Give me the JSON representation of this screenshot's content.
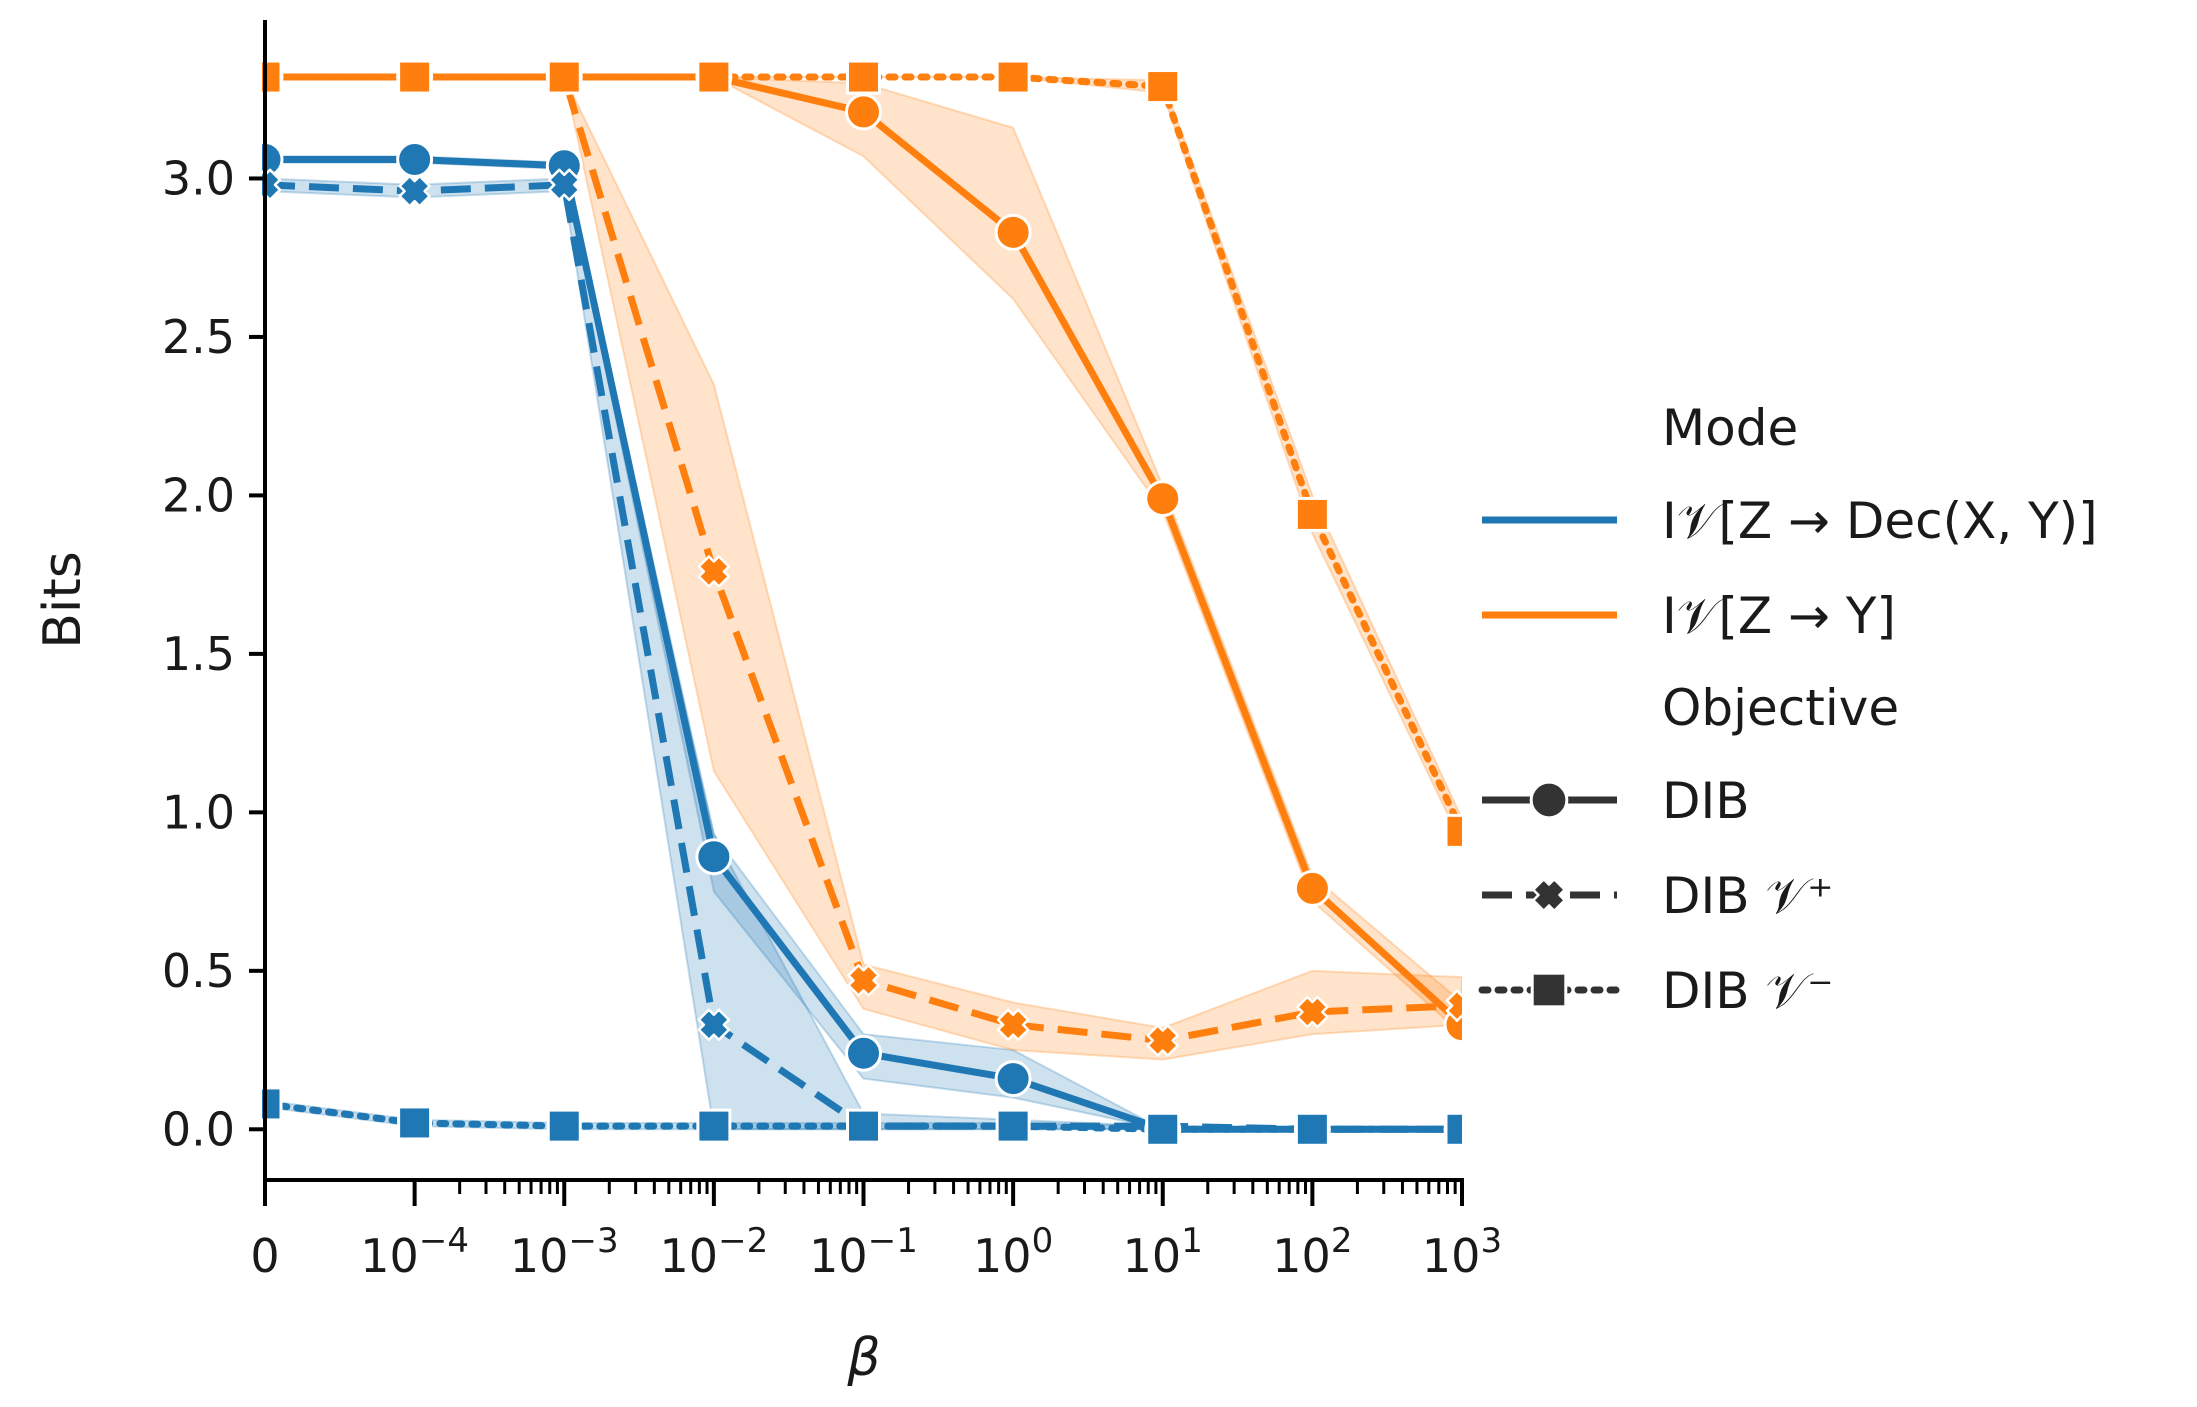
{
  "chart_data": {
    "type": "line",
    "xlabel": "β",
    "ylabel": "Bits",
    "x": [
      "0",
      "1e-4",
      "1e-3",
      "1e-2",
      "1e-1",
      "1e0",
      "1e1",
      "1e2",
      "1e3"
    ],
    "x_tick_labels": [
      {
        "base": "0",
        "exp": ""
      },
      {
        "base": "10",
        "exp": "−4"
      },
      {
        "base": "10",
        "exp": "−3"
      },
      {
        "base": "10",
        "exp": "−2"
      },
      {
        "base": "10",
        "exp": "−1"
      },
      {
        "base": "10",
        "exp": "0"
      },
      {
        "base": "10",
        "exp": "1"
      },
      {
        "base": "10",
        "exp": "2"
      },
      {
        "base": "10",
        "exp": "3"
      }
    ],
    "y_ticks": [
      "0.0",
      "0.5",
      "1.0",
      "1.5",
      "2.0",
      "2.5",
      "3.0"
    ],
    "ylim": [
      -0.16,
      3.5
    ],
    "x_scale": "symlog",
    "grid": false,
    "legend_position": "right",
    "legend": {
      "mode_title": "Mode",
      "mode_entries": [
        {
          "label": "I𝒱[Z → Dec(X, Y)]",
          "color": "#1f77b4"
        },
        {
          "label": "I𝒱[Z → Y]",
          "color": "#ff7f0e"
        }
      ],
      "objective_title": "Objective",
      "objective_entries": [
        {
          "label": "DIB",
          "style": "solid",
          "marker": "circle"
        },
        {
          "label": "DIB 𝒱⁺",
          "style": "dashed",
          "marker": "x"
        },
        {
          "label": "DIB 𝒱⁻",
          "style": "dotted",
          "marker": "square"
        }
      ]
    },
    "series": [
      {
        "mode": "I𝒱[Z → Dec(X, Y)]",
        "objective": "DIB",
        "color": "#1f77b4",
        "style": "solid",
        "marker": "circle",
        "values": [
          3.06,
          3.06,
          3.04,
          0.86,
          0.24,
          0.16,
          0.0,
          0.0,
          0.0
        ],
        "ci_low": [
          3.05,
          3.05,
          3.03,
          0.75,
          0.16,
          0.1,
          0.0,
          0.0,
          0.0
        ],
        "ci_high": [
          3.07,
          3.07,
          3.05,
          0.93,
          0.3,
          0.25,
          0.0,
          0.0,
          0.0
        ]
      },
      {
        "mode": "I𝒱[Z → Dec(X, Y)]",
        "objective": "DIB 𝒱⁺",
        "color": "#1f77b4",
        "style": "dashed",
        "marker": "x",
        "values": [
          2.98,
          2.96,
          2.98,
          0.33,
          0.01,
          0.01,
          0.01,
          0.0,
          0.0
        ],
        "ci_low": [
          2.96,
          2.94,
          2.96,
          0.0,
          0.0,
          0.0,
          0.0,
          0.0,
          0.0
        ],
        "ci_high": [
          3.0,
          2.98,
          3.0,
          0.93,
          0.05,
          0.03,
          0.01,
          0.0,
          0.0
        ]
      },
      {
        "mode": "I𝒱[Z → Dec(X, Y)]",
        "objective": "DIB 𝒱⁻",
        "color": "#1f77b4",
        "style": "dotted",
        "marker": "square",
        "values": [
          0.08,
          0.02,
          0.01,
          0.01,
          0.01,
          0.01,
          0.0,
          0.0,
          0.0
        ],
        "ci_low": [
          0.07,
          0.01,
          0.0,
          0.0,
          0.0,
          0.0,
          0.0,
          0.0,
          0.0
        ],
        "ci_high": [
          0.09,
          0.03,
          0.02,
          0.02,
          0.02,
          0.02,
          0.01,
          0.0,
          0.0
        ]
      },
      {
        "mode": "I𝒱[Z → Y]",
        "objective": "DIB",
        "color": "#ff7f0e",
        "style": "solid",
        "marker": "circle",
        "values": [
          3.32,
          3.32,
          3.32,
          3.32,
          3.21,
          2.83,
          1.99,
          0.76,
          0.33
        ],
        "ci_low": [
          3.32,
          3.32,
          3.32,
          3.32,
          3.07,
          2.62,
          1.95,
          0.72,
          0.3
        ],
        "ci_high": [
          3.32,
          3.32,
          3.32,
          3.32,
          3.3,
          3.16,
          2.03,
          0.8,
          0.4
        ]
      },
      {
        "mode": "I𝒱[Z → Y]",
        "objective": "DIB 𝒱⁺",
        "color": "#ff7f0e",
        "style": "dashed",
        "marker": "x",
        "values": [
          3.32,
          3.32,
          3.32,
          1.76,
          0.47,
          0.33,
          0.28,
          0.37,
          0.39
        ],
        "ci_low": [
          3.32,
          3.32,
          3.32,
          1.13,
          0.38,
          0.25,
          0.22,
          0.3,
          0.33
        ],
        "ci_high": [
          3.32,
          3.32,
          3.32,
          2.35,
          0.52,
          0.4,
          0.32,
          0.5,
          0.48
        ]
      },
      {
        "mode": "I𝒱[Z → Y]",
        "objective": "DIB 𝒱⁻",
        "color": "#ff7f0e",
        "style": "dotted",
        "marker": "square",
        "values": [
          3.32,
          3.32,
          3.32,
          3.32,
          3.32,
          3.32,
          3.29,
          1.94,
          0.94
        ],
        "ci_low": [
          3.32,
          3.32,
          3.32,
          3.32,
          3.32,
          3.32,
          3.27,
          1.88,
          0.9
        ],
        "ci_high": [
          3.32,
          3.32,
          3.32,
          3.32,
          3.32,
          3.32,
          3.31,
          2.0,
          0.98
        ]
      }
    ]
  }
}
